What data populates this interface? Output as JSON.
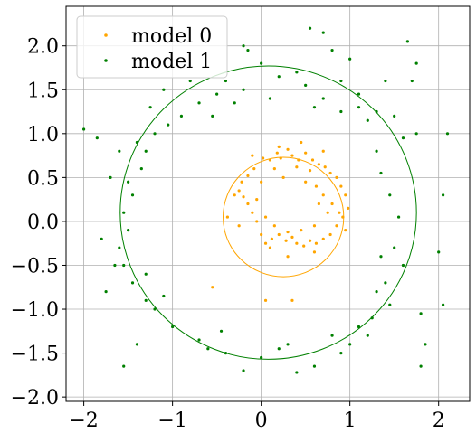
{
  "chart_data": {
    "type": "scatter",
    "xlim": [
      -2.2,
      2.35
    ],
    "ylim": [
      -2.05,
      2.45
    ],
    "xticks": [
      -2,
      -1,
      0,
      1,
      2
    ],
    "yticks": [
      -2.0,
      -1.5,
      -1.0,
      -0.5,
      0.0,
      0.5,
      1.0,
      1.5,
      2.0
    ],
    "xtick_labels": [
      "−2",
      "−1",
      "0",
      "1",
      "2"
    ],
    "ytick_labels": [
      "−2.0",
      "−1.5",
      "−1.0",
      "−0.5",
      "0.0",
      "0.5",
      "1.0",
      "1.5",
      "2.0"
    ],
    "grid": true,
    "legend_position": "top-left",
    "series": [
      {
        "name": "model 0",
        "color": "#ffa500",
        "marker": "point",
        "fitted_circle": {
          "cx": 0.25,
          "cy": 0.05,
          "r": 0.68
        },
        "points": [
          [
            0.02,
            0.72
          ],
          [
            0.1,
            0.7
          ],
          [
            0.18,
            0.78
          ],
          [
            0.22,
            0.72
          ],
          [
            0.3,
            0.82
          ],
          [
            0.35,
            0.75
          ],
          [
            0.42,
            0.7
          ],
          [
            0.5,
            0.78
          ],
          [
            0.58,
            0.7
          ],
          [
            0.65,
            0.65
          ],
          [
            0.72,
            0.62
          ],
          [
            0.78,
            0.55
          ],
          [
            0.85,
            0.5
          ],
          [
            0.9,
            0.4
          ],
          [
            0.95,
            0.3
          ],
          [
            0.98,
            0.15
          ],
          [
            0.92,
            0.05
          ],
          [
            0.85,
            -0.05
          ],
          [
            0.78,
            -0.15
          ],
          [
            0.7,
            -0.2
          ],
          [
            0.62,
            -0.25
          ],
          [
            0.55,
            -0.22
          ],
          [
            0.48,
            -0.28
          ],
          [
            0.4,
            -0.25
          ],
          [
            0.35,
            -0.18
          ],
          [
            0.28,
            -0.22
          ],
          [
            0.2,
            -0.15
          ],
          [
            0.12,
            -0.2
          ],
          [
            0.05,
            -0.25
          ],
          [
            0.0,
            -0.15
          ],
          [
            -0.05,
            0.0
          ],
          [
            -0.1,
            0.1
          ],
          [
            -0.15,
            0.2
          ],
          [
            -0.2,
            0.28
          ],
          [
            -0.25,
            0.35
          ],
          [
            -0.3,
            0.3
          ],
          [
            -0.22,
            0.45
          ],
          [
            -0.15,
            0.52
          ],
          [
            -0.08,
            0.6
          ],
          [
            0.15,
            0.6
          ],
          [
            0.4,
            0.62
          ],
          [
            0.55,
            0.58
          ],
          [
            0.62,
            0.4
          ],
          [
            0.7,
            0.3
          ],
          [
            0.75,
            0.1
          ],
          [
            0.6,
            -0.05
          ],
          [
            0.45,
            -0.1
          ],
          [
            0.3,
            -0.12
          ],
          [
            0.15,
            -0.05
          ],
          [
            0.05,
            0.05
          ],
          [
            -0.05,
            0.25
          ],
          [
            0.0,
            0.45
          ],
          [
            0.25,
            0.5
          ],
          [
            0.5,
            0.45
          ],
          [
            0.65,
            0.2
          ],
          [
            -0.55,
            -0.75
          ],
          [
            0.05,
            -0.9
          ],
          [
            0.35,
            -0.9
          ],
          [
            -0.38,
            0.05
          ],
          [
            -0.25,
            -0.05
          ],
          [
            0.8,
            0.2
          ],
          [
            0.88,
            0.1
          ],
          [
            0.95,
            -0.1
          ],
          [
            0.7,
            0.8
          ],
          [
            0.2,
            0.85
          ],
          [
            0.45,
            0.9
          ],
          [
            -0.1,
            0.75
          ],
          [
            0.3,
            -0.4
          ],
          [
            0.1,
            -0.3
          ],
          [
            0.6,
            -0.35
          ]
        ]
      },
      {
        "name": "model 1",
        "color": "#008000",
        "marker": "point",
        "fitted_circle": {
          "cx": 0.08,
          "cy": 0.1,
          "r": 1.67
        },
        "points": [
          [
            -0.2,
            2.0
          ],
          [
            0.55,
            2.2
          ],
          [
            0.7,
            2.15
          ],
          [
            -0.15,
            1.95
          ],
          [
            0.8,
            1.95
          ],
          [
            1.0,
            1.85
          ],
          [
            1.65,
            2.05
          ],
          [
            1.75,
            1.8
          ],
          [
            1.7,
            1.6
          ],
          [
            1.4,
            1.6
          ],
          [
            1.3,
            1.25
          ],
          [
            1.5,
            1.2
          ],
          [
            1.6,
            0.95
          ],
          [
            1.75,
            1.0
          ],
          [
            1.3,
            0.8
          ],
          [
            1.35,
            0.55
          ],
          [
            1.45,
            0.3
          ],
          [
            1.55,
            0.05
          ],
          [
            1.5,
            -0.3
          ],
          [
            1.6,
            -0.5
          ],
          [
            1.4,
            -0.7
          ],
          [
            1.3,
            -0.8
          ],
          [
            1.45,
            -0.95
          ],
          [
            1.25,
            -1.1
          ],
          [
            1.1,
            -1.2
          ],
          [
            1.0,
            -1.4
          ],
          [
            0.9,
            -1.5
          ],
          [
            0.6,
            -1.65
          ],
          [
            0.4,
            -1.72
          ],
          [
            0.3,
            -1.4
          ],
          [
            0.2,
            -1.45
          ],
          [
            0.0,
            -1.55
          ],
          [
            -0.2,
            -1.7
          ],
          [
            -0.4,
            -1.5
          ],
          [
            -0.45,
            -1.25
          ],
          [
            -0.7,
            -1.35
          ],
          [
            -1.0,
            -1.2
          ],
          [
            -1.2,
            -1.0
          ],
          [
            -1.3,
            -0.9
          ],
          [
            -1.45,
            -0.7
          ],
          [
            -1.55,
            -0.5
          ],
          [
            -1.6,
            -0.3
          ],
          [
            -1.5,
            -0.1
          ],
          [
            -1.55,
            0.1
          ],
          [
            -1.45,
            0.3
          ],
          [
            -1.5,
            0.45
          ],
          [
            -1.35,
            0.6
          ],
          [
            -1.3,
            0.8
          ],
          [
            -1.2,
            1.0
          ],
          [
            -1.05,
            1.1
          ],
          [
            -0.9,
            1.2
          ],
          [
            -0.7,
            1.35
          ],
          [
            -0.5,
            1.45
          ],
          [
            -0.4,
            1.6
          ],
          [
            -0.2,
            1.5
          ],
          [
            0.0,
            1.8
          ],
          [
            0.2,
            1.65
          ],
          [
            0.4,
            1.7
          ],
          [
            0.5,
            1.55
          ],
          [
            0.7,
            1.4
          ],
          [
            0.9,
            1.25
          ],
          [
            1.1,
            1.3
          ],
          [
            1.2,
            1.15
          ],
          [
            -1.85,
            0.95
          ],
          [
            -2.0,
            1.05
          ],
          [
            -1.6,
            0.8
          ],
          [
            -1.7,
            0.5
          ],
          [
            -1.8,
            -0.2
          ],
          [
            -1.65,
            -0.5
          ],
          [
            -1.75,
            -0.8
          ],
          [
            -1.4,
            -1.4
          ],
          [
            -1.55,
            -1.65
          ],
          [
            -1.1,
            -0.85
          ],
          [
            2.1,
            1.0
          ],
          [
            2.05,
            0.3
          ],
          [
            2.0,
            -0.35
          ],
          [
            2.05,
            -0.95
          ],
          [
            1.8,
            -1.05
          ],
          [
            1.85,
            -1.4
          ],
          [
            1.8,
            -1.65
          ],
          [
            -0.55,
            1.2
          ],
          [
            -0.3,
            1.35
          ],
          [
            0.1,
            1.4
          ],
          [
            0.9,
            1.6
          ],
          [
            1.1,
            1.45
          ],
          [
            -1.1,
            1.5
          ],
          [
            -1.25,
            1.3
          ],
          [
            -0.8,
            1.6
          ],
          [
            0.6,
            1.3
          ],
          [
            1.35,
            -0.4
          ],
          [
            -1.4,
            0.9
          ],
          [
            -1.3,
            -0.6
          ],
          [
            -0.6,
            -1.45
          ],
          [
            0.8,
            -1.3
          ],
          [
            1.2,
            -1.3
          ]
        ]
      }
    ]
  }
}
